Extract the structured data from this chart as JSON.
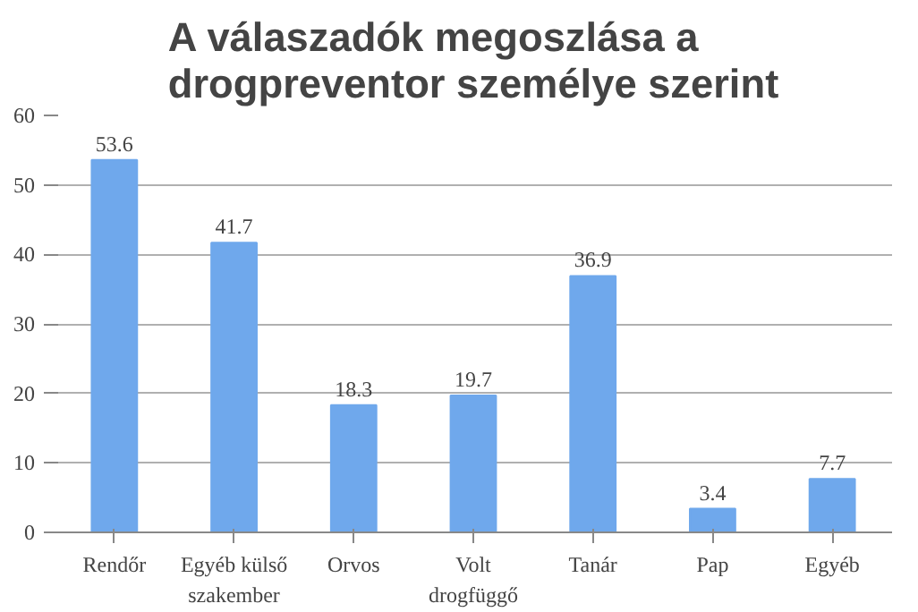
{
  "chart_data": {
    "type": "bar",
    "title": "A válaszadók megoszlása a\ndrogpreventor személye szerint",
    "categories": [
      "Rendőr",
      "Egyéb külső\nszakember",
      "Orvos",
      "Volt\ndrogfüggő",
      "Tanár",
      "Pap",
      "Egyéb"
    ],
    "values": [
      53.6,
      41.7,
      18.3,
      19.7,
      36.9,
      3.4,
      7.7
    ],
    "color": "#6fa8ec",
    "ylim": [
      0,
      60
    ],
    "yticks": [
      0,
      10,
      20,
      30,
      40,
      50,
      60
    ],
    "grid": "y",
    "data_labels": true
  }
}
